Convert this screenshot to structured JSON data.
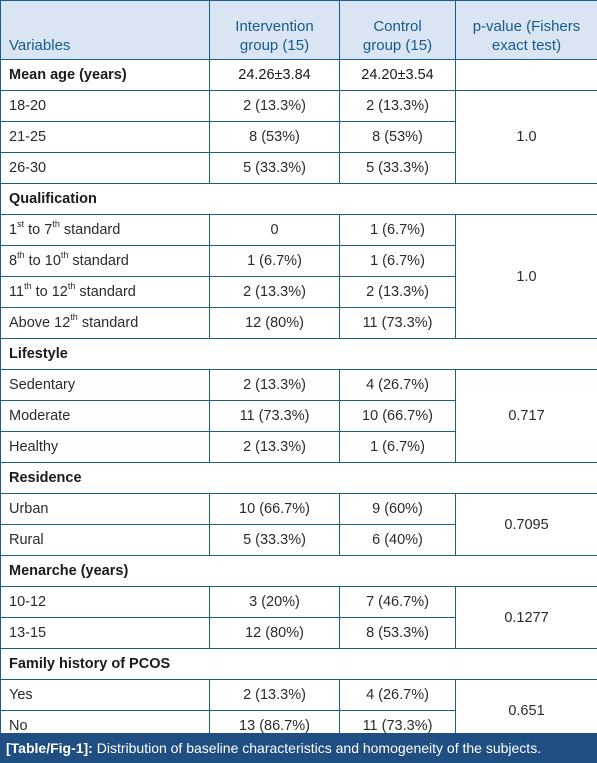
{
  "headers": {
    "variables": "Variables",
    "intervention_line1": "Intervention",
    "intervention_line2": "group (15)",
    "control_line1": "Control",
    "control_line2": "group (15)",
    "pvalue_line1": "p-value (Fishers",
    "pvalue_line2": "exact test)"
  },
  "age": {
    "title": "Mean age (years)",
    "intervention": "24.26±3.84",
    "control": "24.20±3.54",
    "rows": [
      {
        "label": "18-20",
        "intervention": "2 (13.3%)",
        "control": "2 (13.3%)"
      },
      {
        "label": "21-25",
        "intervention": "8 (53%)",
        "control": "8 (53%)"
      },
      {
        "label": "26-30",
        "intervention": "5 (33.3%)",
        "control": "5 (33.3%)"
      }
    ],
    "p": "1.0"
  },
  "qualification": {
    "title": "Qualification",
    "rows": [
      {
        "num_a": "1",
        "sup_a": "st",
        "mid": " to ",
        "num_b": "7",
        "sup_b": "th",
        "tail": " standard",
        "intervention": "0",
        "control": "1 (6.7%)"
      },
      {
        "num_a": "8",
        "sup_a": "th",
        "mid": " to ",
        "num_b": "10",
        "sup_b": "th",
        "tail": " standard",
        "intervention": "1 (6.7%)",
        "control": "1 (6.7%)"
      },
      {
        "num_a": "11",
        "sup_a": "th",
        "mid": " to ",
        "num_b": "12",
        "sup_b": "th",
        "tail": " standard",
        "intervention": "2 (13.3%)",
        "control": "2 (13.3%)"
      }
    ],
    "last_row": {
      "label": "Above 12",
      "sup": "th",
      "tail": " standard",
      "intervention": "12 (80%)",
      "control": "11 (73.3%)"
    },
    "p": "1.0"
  },
  "lifestyle": {
    "title": "Lifestyle",
    "rows": [
      {
        "label": "Sedentary",
        "intervention": "2 (13.3%)",
        "control": "4 (26.7%)"
      },
      {
        "label": "Moderate",
        "intervention": "11 (73.3%)",
        "control": "10 (66.7%)"
      },
      {
        "label": "Healthy",
        "intervention": "2 (13.3%)",
        "control": "1 (6.7%)"
      }
    ],
    "p": "0.717"
  },
  "residence": {
    "title": "Residence",
    "rows": [
      {
        "label": "Urban",
        "intervention": "10 (66.7%)",
        "control": "9 (60%)"
      },
      {
        "label": "Rural",
        "intervention": "5 (33.3%)",
        "control": "6 (40%)"
      }
    ],
    "p": "0.7095"
  },
  "menarche": {
    "title": "Menarche (years)",
    "rows": [
      {
        "label": "10-12",
        "intervention": "3 (20%)",
        "control": "7 (46.7%)"
      },
      {
        "label": "13-15",
        "intervention": "12 (80%)",
        "control": "8 (53.3%)"
      }
    ],
    "p": "0.1277"
  },
  "family": {
    "title": "Family history of PCOS",
    "rows": [
      {
        "label": "Yes",
        "intervention": "2 (13.3%)",
        "control": "4 (26.7%)"
      },
      {
        "label": "No",
        "intervention": "13 (86.7%)",
        "control": "11 (73.3%)"
      }
    ],
    "p": "0.651"
  },
  "caption": {
    "tag": "[Table/Fig-1]:",
    "text": " Distribution of baseline characteristics and homogeneity of the subjects."
  },
  "colors": {
    "header_bg": "#d9e5f3",
    "header_text": "#1a5a8a",
    "border": "#1c5d8b",
    "caption_bg": "#1f4e82"
  }
}
